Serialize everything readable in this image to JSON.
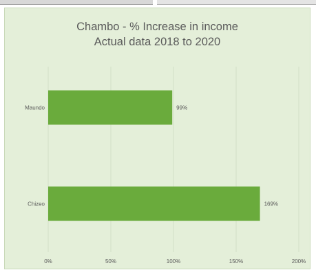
{
  "chart_data": {
    "type": "bar",
    "orientation": "horizontal",
    "title": "Chambo - % Increase in income",
    "subtitle": "Actual data 2018 to 2020",
    "categories": [
      "Maundo",
      "Chizeo"
    ],
    "values": [
      99,
      169
    ],
    "data_labels": [
      "99%",
      "169%"
    ],
    "x_ticks": [
      "0%",
      "50%",
      "100%",
      "150%",
      "200%"
    ],
    "xlim": [
      0,
      200
    ],
    "grid": true,
    "legend": "none",
    "colors": {
      "bar": "#6aab3c",
      "background": "#e4efd9",
      "gridline": "#d2dfc6",
      "text": "#595959"
    }
  }
}
